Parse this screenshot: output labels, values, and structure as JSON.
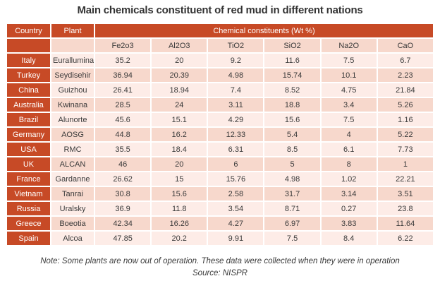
{
  "chart_data": {
    "type": "table",
    "title": "Main chemicals constituent of red mud in different nations",
    "header": {
      "country": "Country",
      "plant": "Plant",
      "group": "Chemical constituents (Wt %)"
    },
    "columns": [
      "Fe2o3",
      "Al2O3",
      "TiO2",
      "SiO2",
      "Na2O",
      "CaO"
    ],
    "rows": [
      {
        "country": "Italy",
        "plant": "Eurallumina",
        "values": [
          "35.2",
          "20",
          "9.2",
          "11.6",
          "7.5",
          "6.7"
        ]
      },
      {
        "country": "Turkey",
        "plant": "Seydisehir",
        "values": [
          "36.94",
          "20.39",
          "4.98",
          "15.74",
          "10.1",
          "2.23"
        ]
      },
      {
        "country": "China",
        "plant": "Guizhou",
        "values": [
          "26.41",
          "18.94",
          "7.4",
          "8.52",
          "4.75",
          "21.84"
        ]
      },
      {
        "country": "Australia",
        "plant": "Kwinana",
        "values": [
          "28.5",
          "24",
          "3.11",
          "18.8",
          "3.4",
          "5.26"
        ]
      },
      {
        "country": "Brazil",
        "plant": "Alunorte",
        "values": [
          "45.6",
          "15.1",
          "4.29",
          "15.6",
          "7.5",
          "1.16"
        ]
      },
      {
        "country": "Germany",
        "plant": "AOSG",
        "values": [
          "44.8",
          "16.2",
          "12.33",
          "5.4",
          "4",
          "5.22"
        ]
      },
      {
        "country": "USA",
        "plant": "RMC",
        "values": [
          "35.5",
          "18.4",
          "6.31",
          "8.5",
          "6.1",
          "7.73"
        ]
      },
      {
        "country": "UK",
        "plant": "ALCAN",
        "values": [
          "46",
          "20",
          "6",
          "5",
          "8",
          "1"
        ]
      },
      {
        "country": "France",
        "plant": "Gardanne",
        "values": [
          "26.62",
          "15",
          "15.76",
          "4.98",
          "1.02",
          "22.21"
        ]
      },
      {
        "country": "Vietnam",
        "plant": "Tanrai",
        "values": [
          "30.8",
          "15.6",
          "2.58",
          "31.7",
          "3.14",
          "3.51"
        ]
      },
      {
        "country": "Russia",
        "plant": "Uralsky",
        "values": [
          "36.9",
          "11.8",
          "3.54",
          "8.71",
          "0.27",
          "23.8"
        ]
      },
      {
        "country": "Greece",
        "plant": "Boeotia",
        "values": [
          "42.34",
          "16.26",
          "4.27",
          "6.97",
          "3.83",
          "11.64"
        ]
      },
      {
        "country": "Spain",
        "plant": "Alcoa",
        "values": [
          "47.85",
          "20.2",
          "9.91",
          "7.5",
          "8.4",
          "6.22"
        ]
      }
    ]
  },
  "footer": {
    "note": "Note: Some plants are now out of operation. These data were collected when they were in operation",
    "source": "Source: NISPR"
  },
  "colors": {
    "header_orange": "#c74a26",
    "row_pink_dark": "#f7d8cc",
    "row_pink_light": "#fdece7",
    "text_dark": "#3a3a3a",
    "header_text_white": "#ffffff"
  }
}
